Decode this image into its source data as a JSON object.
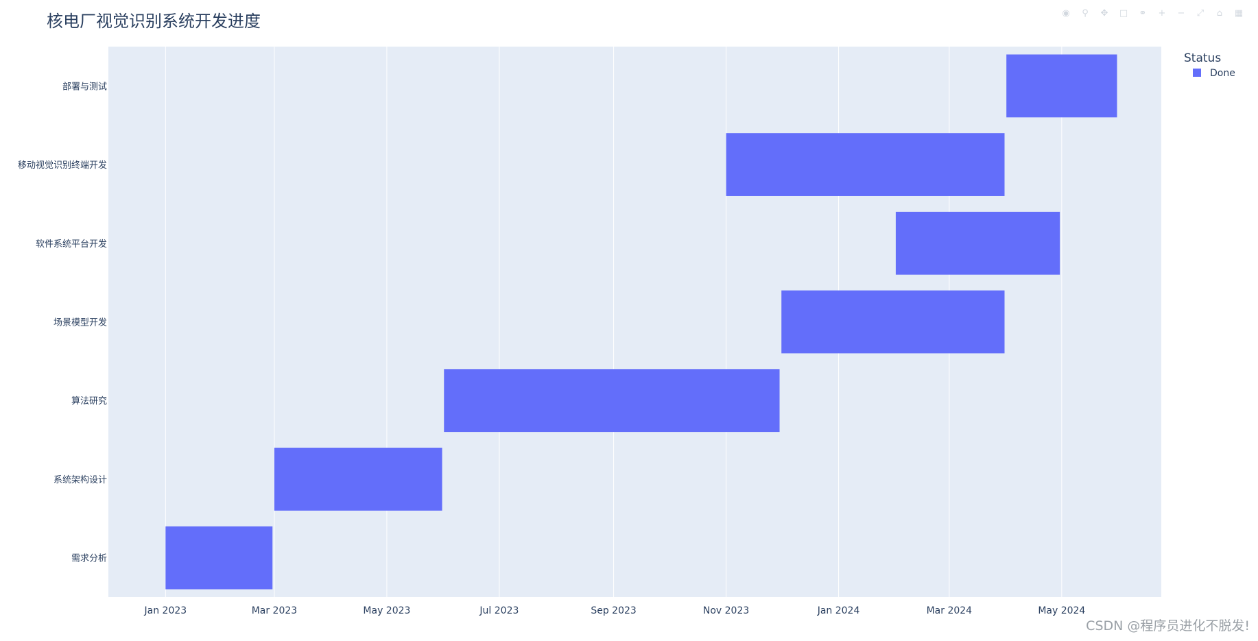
{
  "chart_data": {
    "type": "gantt",
    "title": "核电厂视觉识别系统开发进度",
    "legend": {
      "title": "Status",
      "placement": "top-right",
      "entries": [
        {
          "name": "Done",
          "color": "#636efa"
        }
      ]
    },
    "grid": true,
    "x_axis": {
      "type": "date",
      "range": [
        "2022-12-01",
        "2024-06-24"
      ],
      "ticks": [
        {
          "date": "2023-01-01",
          "label": "Jan 2023"
        },
        {
          "date": "2023-03-01",
          "label": "Mar 2023"
        },
        {
          "date": "2023-05-01",
          "label": "May 2023"
        },
        {
          "date": "2023-07-01",
          "label": "Jul 2023"
        },
        {
          "date": "2023-09-01",
          "label": "Sep 2023"
        },
        {
          "date": "2023-11-01",
          "label": "Nov 2023"
        },
        {
          "date": "2024-01-01",
          "label": "Jan 2024"
        },
        {
          "date": "2024-03-01",
          "label": "Mar 2024"
        },
        {
          "date": "2024-05-01",
          "label": "May 2024"
        }
      ]
    },
    "tasks": [
      {
        "name": "需求分析",
        "start": "2023-01-01",
        "end": "2023-02-28",
        "status": "Done"
      },
      {
        "name": "系统架构设计",
        "start": "2023-03-01",
        "end": "2023-05-31",
        "status": "Done"
      },
      {
        "name": "算法研究",
        "start": "2023-06-01",
        "end": "2023-11-30",
        "status": "Done"
      },
      {
        "name": "场景模型开发",
        "start": "2023-12-01",
        "end": "2024-03-31",
        "status": "Done"
      },
      {
        "name": "软件系统平台开发",
        "start": "2024-02-01",
        "end": "2024-04-30",
        "status": "Done"
      },
      {
        "name": "移动视觉识别终端开发",
        "start": "2023-11-01",
        "end": "2024-03-31",
        "status": "Done"
      },
      {
        "name": "部署与测试",
        "start": "2024-04-01",
        "end": "2024-05-31",
        "status": "Done"
      }
    ],
    "colors": {
      "bar": "#636efa",
      "plot_bg": "#e5ecf6",
      "grid": "#ffffff",
      "text": "#2a3f5f"
    }
  },
  "watermark": "CSDN @程序员进化不脱发!",
  "modebar": {
    "icons": [
      "camera-icon",
      "zoom-icon",
      "pan-icon",
      "box-select-icon",
      "lasso-icon",
      "zoom-in-icon",
      "zoom-out-icon",
      "autoscale-icon",
      "reset-icon",
      "plotly-logo-icon"
    ]
  }
}
